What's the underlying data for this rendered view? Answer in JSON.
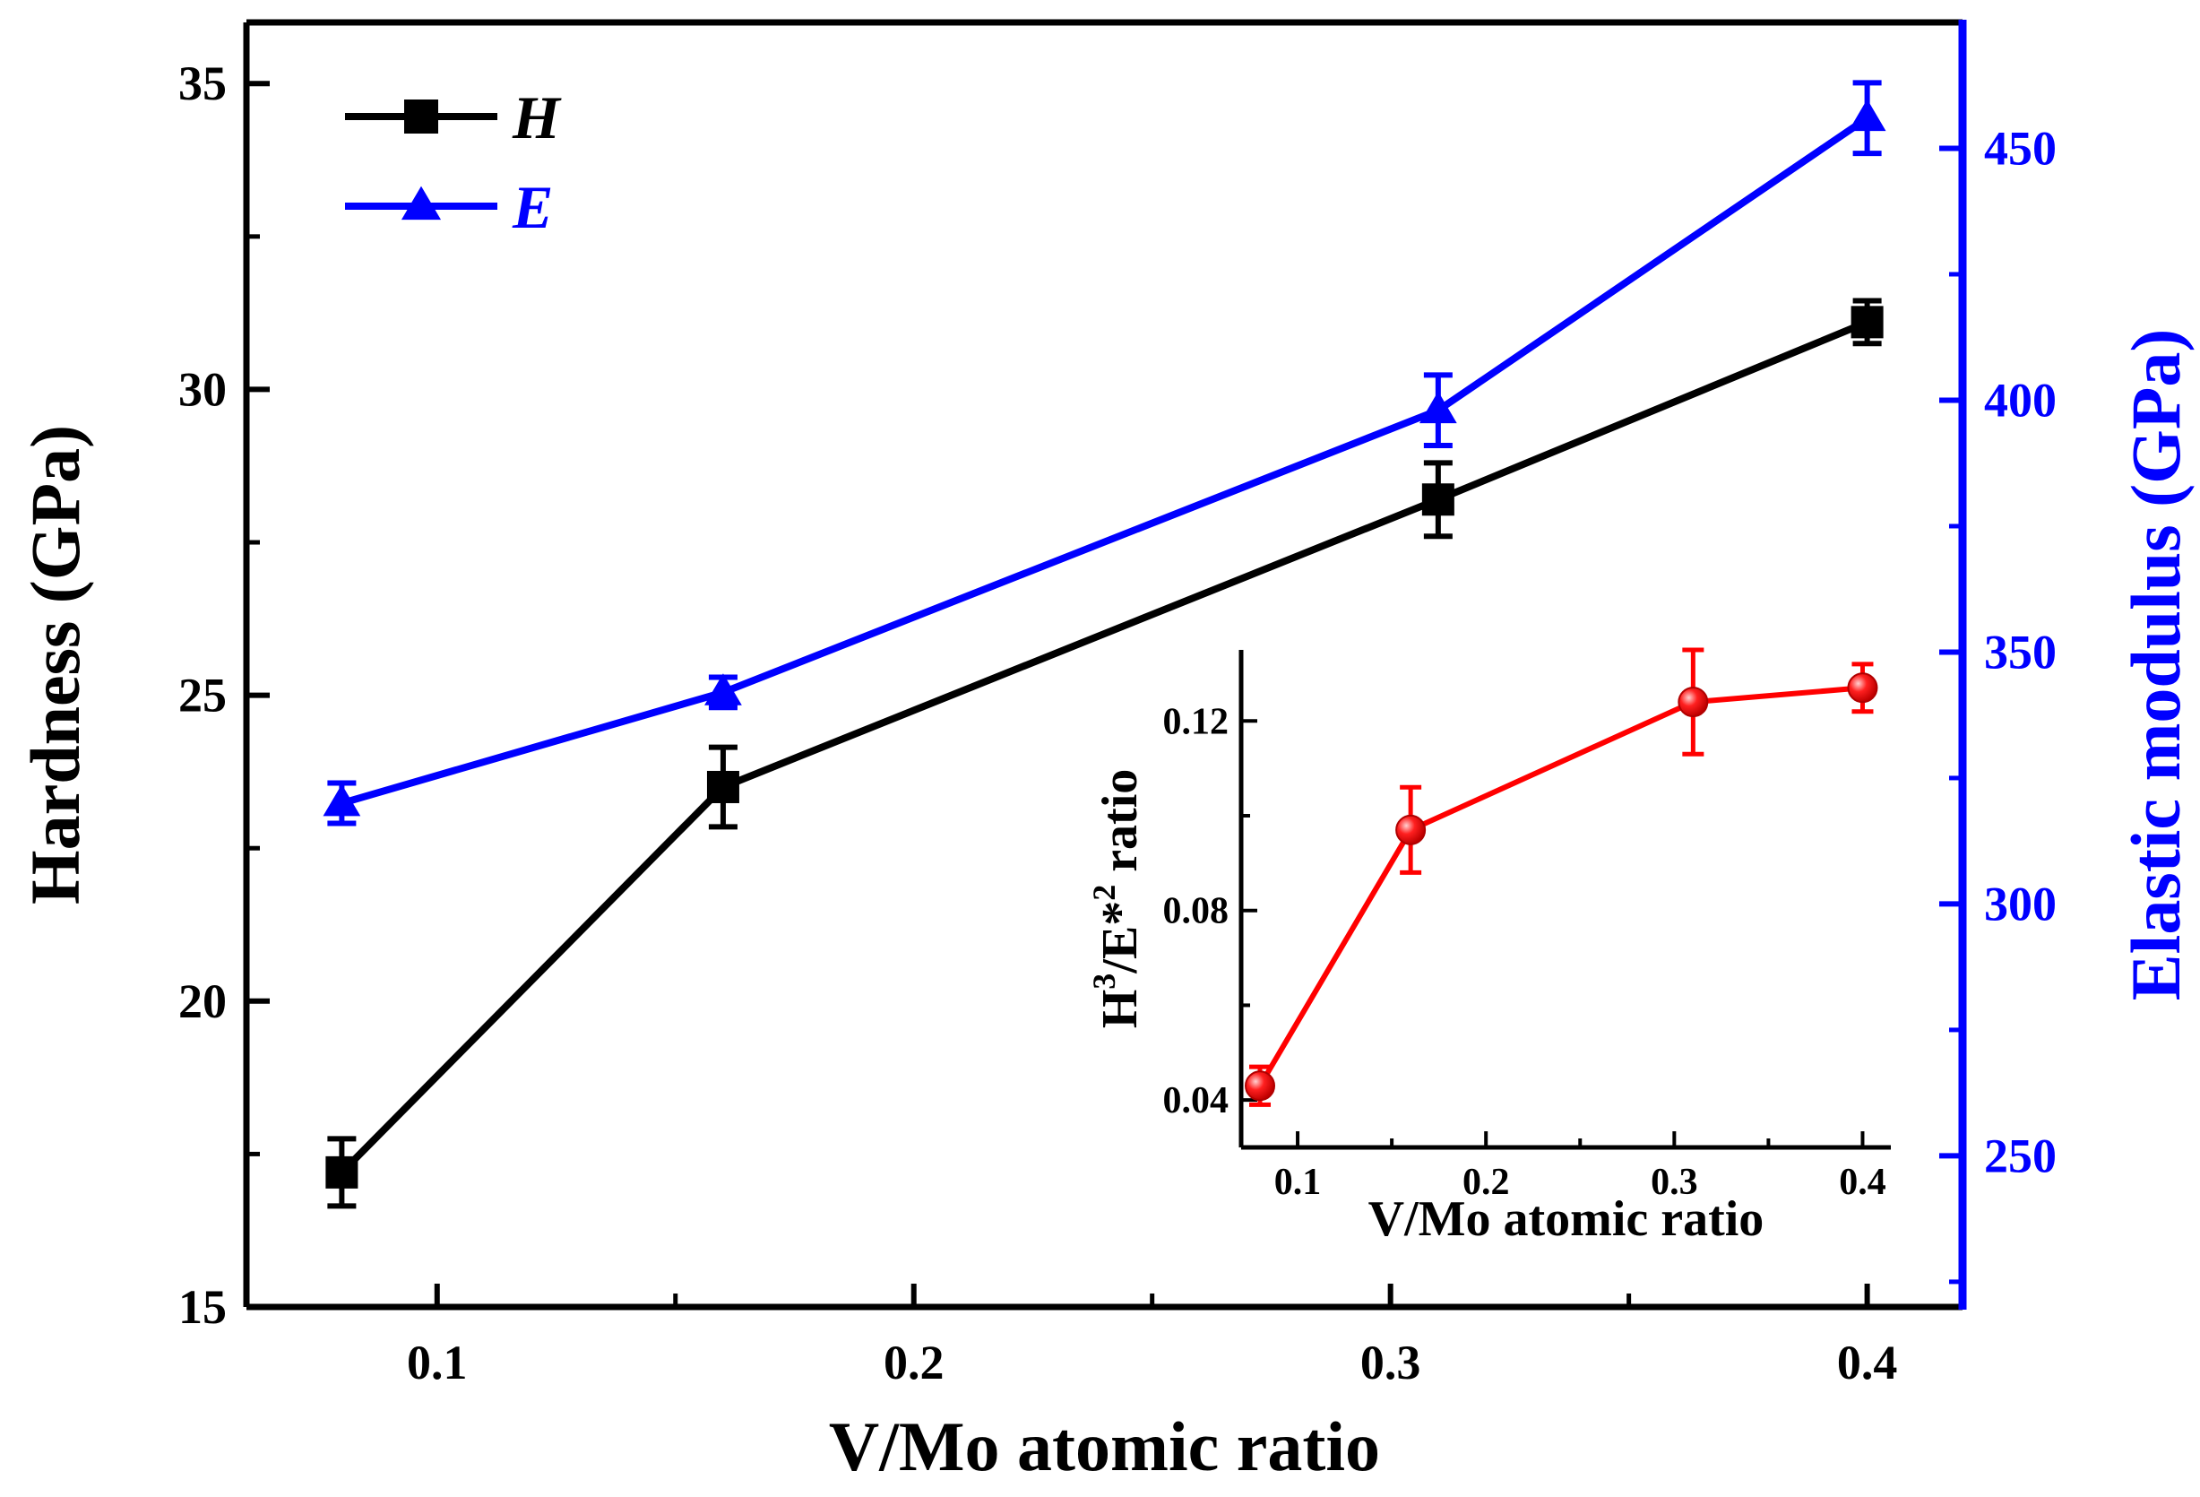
{
  "chart_data": {
    "type": "line",
    "x_axis": {
      "label": "V/Mo atomic ratio",
      "range": [
        0.06,
        0.42
      ],
      "ticks": [
        0.1,
        0.2,
        0.3,
        0.4
      ],
      "tick_labels": [
        "0.1",
        "0.2",
        "0.3",
        "0.4"
      ]
    },
    "y_left": {
      "label": "Hardness (GPa)",
      "range": [
        15,
        36
      ],
      "ticks": [
        15,
        20,
        25,
        30,
        35
      ],
      "tick_labels": [
        "15",
        "20",
        "25",
        "30",
        "35"
      ]
    },
    "y_right": {
      "label": "Elastic modulus (GPa)",
      "range": [
        220,
        475
      ],
      "ticks": [
        250,
        300,
        350,
        400,
        450
      ],
      "tick_labels": [
        "250",
        "300",
        "350",
        "400",
        "450"
      ]
    },
    "series": [
      {
        "name": "H",
        "axis": "left",
        "color": "#000000",
        "marker": "square",
        "x": [
          0.08,
          0.16,
          0.31,
          0.4
        ],
        "values": [
          17.2,
          23.5,
          28.2,
          31.1
        ],
        "errors": [
          0.55,
          0.65,
          0.6,
          0.35
        ]
      },
      {
        "name": "E",
        "axis": "right",
        "color": "#0000ff",
        "marker": "triangle",
        "x": [
          0.08,
          0.16,
          0.31,
          0.4
        ],
        "values": [
          320,
          342,
          398,
          456
        ],
        "errors": [
          4,
          3,
          7,
          7
        ]
      }
    ],
    "legend": {
      "position": "top-left",
      "entries": [
        "H",
        "E"
      ]
    },
    "inset": {
      "type": "line",
      "position": "bottom-right",
      "x_axis": {
        "label": "V/Mo atomic ratio",
        "range": [
          0.07,
          0.415
        ],
        "ticks": [
          0.1,
          0.2,
          0.3,
          0.4
        ],
        "tick_labels": [
          "0.1",
          "0.2",
          "0.3",
          "0.4"
        ]
      },
      "y_axis": {
        "label_parts": [
          "H",
          "3",
          "/E*",
          "2",
          " ratio"
        ],
        "range": [
          0.03,
          0.135
        ],
        "ticks": [
          0.04,
          0.08,
          0.12
        ],
        "tick_labels": [
          "0.04",
          "0.08",
          "0.12"
        ]
      },
      "series": [
        {
          "name": "H3/E*2",
          "color": "#ff0000",
          "marker": "circle",
          "x": [
            0.08,
            0.16,
            0.31,
            0.4
          ],
          "values": [
            0.043,
            0.097,
            0.124,
            0.127
          ],
          "errors": [
            0.004,
            0.009,
            0.011,
            0.005
          ]
        }
      ]
    }
  }
}
